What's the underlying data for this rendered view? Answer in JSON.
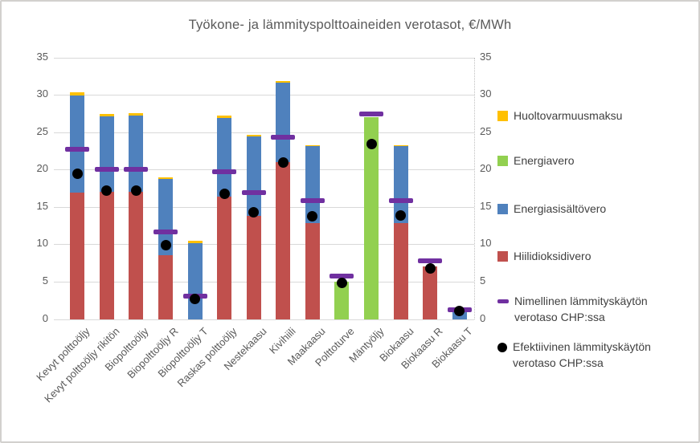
{
  "chart_data": {
    "type": "bar",
    "stacked": true,
    "title": "Työkone- ja lämmityspolttoaineiden verotasot, €/MWh",
    "ylabel": "",
    "xlabel": "",
    "ylim": [
      0,
      35
    ],
    "ytick_step": 5,
    "yticks": [
      0,
      5,
      10,
      15,
      20,
      25,
      30,
      35
    ],
    "grid": true,
    "dual_value_axis": true,
    "legend_position": "right",
    "categories": [
      "Kevyt polttoöljy",
      "Kevyt polttoöljy rikitön",
      "Biopolttoöljy",
      "Biopolttoöljy R",
      "Biopolttoöljy T",
      "Raskas polttoöljy",
      "Nestekaasu",
      "Kivihiili",
      "Maakaasu",
      "Polttoturve",
      "Mäntyöljy",
      "Biokaasu",
      "Biokaasu R",
      "Biokaasu T"
    ],
    "series": [
      {
        "name": "Hiilidioksidivero",
        "color": "#C0504D",
        "values": [
          16.9,
          17.0,
          17.0,
          8.5,
          0,
          16.4,
          13.8,
          21.0,
          12.8,
          0,
          0,
          12.8,
          7.0,
          0
        ]
      },
      {
        "name": "Energiavero",
        "color": "#92D050",
        "values": [
          0,
          0,
          0,
          0,
          0,
          0,
          0,
          0,
          0,
          5.0,
          27.0,
          0,
          0,
          0
        ]
      },
      {
        "name": "Energiasisältövero",
        "color": "#4F81BD",
        "values": [
          13.0,
          10.1,
          10.2,
          10.2,
          10.2,
          10.5,
          10.6,
          10.6,
          10.4,
          0,
          0,
          10.4,
          0,
          1.2
        ]
      },
      {
        "name": "Huoltovarmuusmaksu",
        "color": "#FFC000",
        "values": [
          0.4,
          0.3,
          0.3,
          0.3,
          0.3,
          0.3,
          0.2,
          0.2,
          0.1,
          0,
          0,
          0.1,
          0,
          0
        ]
      }
    ],
    "markers": [
      {
        "name": "Nimellinen lämmityskäytön verotaso CHP:ssa",
        "style": "dash",
        "color": "#7030A0",
        "values": [
          22.7,
          20.0,
          20.0,
          11.7,
          3.1,
          19.7,
          16.9,
          24.3,
          15.8,
          5.8,
          27.4,
          15.8,
          7.8,
          1.3
        ]
      },
      {
        "name": "Efektiivinen lämmityskäytön verotaso CHP:ssa",
        "style": "dot",
        "color": "#000000",
        "values": [
          19.4,
          17.2,
          17.2,
          9.9,
          2.7,
          16.8,
          14.3,
          20.9,
          13.8,
          4.8,
          23.4,
          13.9,
          6.8,
          1.1
        ]
      }
    ]
  }
}
